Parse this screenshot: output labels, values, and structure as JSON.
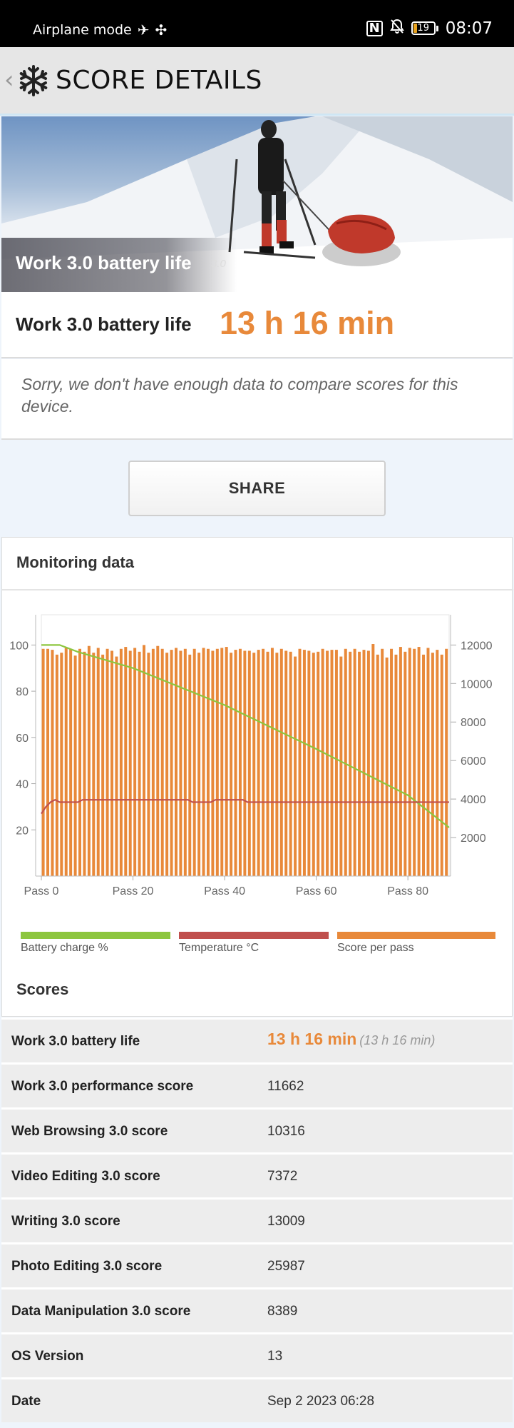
{
  "status_bar": {
    "left_text": "Airplane mode",
    "battery_level": "19",
    "time": "08:07",
    "icons": [
      "airplane-icon",
      "fan-icon",
      "nfc-icon",
      "bell-muted-icon",
      "battery-icon"
    ]
  },
  "app_bar": {
    "title": "SCORE DETAILS",
    "icons": [
      "chevron-left-icon",
      "snowflake-logo-icon"
    ]
  },
  "hero": {
    "title": "Work 3.0 battery life",
    "version": "3.0"
  },
  "result": {
    "label": "Work 3.0 battery life",
    "value": "13 h 16 min"
  },
  "notice": "Sorry, we don't have enough data to compare scores for this device.",
  "share_label": "SHARE",
  "monitoring": {
    "title": "Monitoring data",
    "chart_data": {
      "type": "bar",
      "x_ticks": [
        "Pass 0",
        "Pass 20",
        "Pass 40",
        "Pass 60",
        "Pass 80"
      ],
      "xlim": [
        0,
        89
      ],
      "left_axis": {
        "ticks": [
          20,
          40,
          60,
          80,
          100
        ],
        "ylim": [
          0,
          110
        ]
      },
      "right_axis": {
        "ticks": [
          2000,
          4000,
          6000,
          8000,
          10000,
          12000
        ],
        "ylim": [
          0,
          13200
        ]
      },
      "series": [
        {
          "name": "Battery charge %",
          "type": "line",
          "axis": "left",
          "color": "#8dc63f",
          "points": [
            [
              0,
              100
            ],
            [
              4,
              100
            ],
            [
              8,
              97
            ],
            [
              20,
              90
            ],
            [
              40,
              74
            ],
            [
              60,
              55
            ],
            [
              80,
              35
            ],
            [
              89,
              21
            ]
          ]
        },
        {
          "name": "Temperature °C",
          "type": "line",
          "axis": "left",
          "color": "#c0504d",
          "points": [
            [
              0,
              27
            ],
            [
              1,
              30
            ],
            [
              2,
              32
            ],
            [
              3,
              33
            ],
            [
              4,
              32
            ],
            [
              8,
              32
            ],
            [
              9,
              33
            ],
            [
              32,
              33
            ],
            [
              33,
              32
            ],
            [
              37,
              32
            ],
            [
              38,
              33
            ],
            [
              44,
              33
            ],
            [
              45,
              32
            ],
            [
              89,
              32
            ]
          ]
        },
        {
          "name": "Score per pass",
          "type": "bar",
          "axis": "right",
          "color": "#e8893a",
          "values": [
            11800,
            11800,
            11750,
            11500,
            11600,
            11850,
            11800,
            11450,
            11800,
            11650,
            11950,
            11600,
            11850,
            11500,
            11800,
            11700,
            11400,
            11800,
            11900,
            11700,
            11850,
            11650,
            12000,
            11600,
            11800,
            11950,
            11800,
            11600,
            11750,
            11850,
            11700,
            11800,
            11500,
            11800,
            11600,
            11850,
            11800,
            11700,
            11800,
            11850,
            11900,
            11600,
            11750,
            11800,
            11700,
            11700,
            11600,
            11750,
            11800,
            11650,
            11850,
            11600,
            11800,
            11700,
            11650,
            11400,
            11800,
            11750,
            11700,
            11600,
            11650,
            11800,
            11700,
            11750,
            11750,
            11400,
            11800,
            11650,
            11800,
            11650,
            11750,
            11700,
            12050,
            11500,
            11800,
            11350,
            11800,
            11500,
            11900,
            11650,
            11850,
            11800,
            11900,
            11500,
            11850,
            11600,
            11750,
            11500,
            11800
          ]
        }
      ]
    },
    "legend": [
      {
        "label": "Battery charge %",
        "color": "#8dc63f"
      },
      {
        "label": "Temperature °C",
        "color": "#c0504d"
      },
      {
        "label": "Score per pass",
        "color": "#e8893a"
      }
    ]
  },
  "scores": {
    "title": "Scores",
    "rows": [
      {
        "label": "Work 3.0 battery life",
        "value": "13 h 16 min",
        "sub": "(13 h 16 min)"
      },
      {
        "label": "Work 3.0 performance score",
        "value": "11662"
      },
      {
        "label": "Web Browsing 3.0 score",
        "value": "10316"
      },
      {
        "label": "Video Editing 3.0 score",
        "value": "7372"
      },
      {
        "label": "Writing 3.0 score",
        "value": "13009"
      },
      {
        "label": "Photo Editing 3.0 score",
        "value": "25987"
      },
      {
        "label": "Data Manipulation 3.0 score",
        "value": "8389"
      },
      {
        "label": "OS Version",
        "value": "13"
      },
      {
        "label": "Date",
        "value": "Sep 2 2023 06:28"
      }
    ]
  }
}
